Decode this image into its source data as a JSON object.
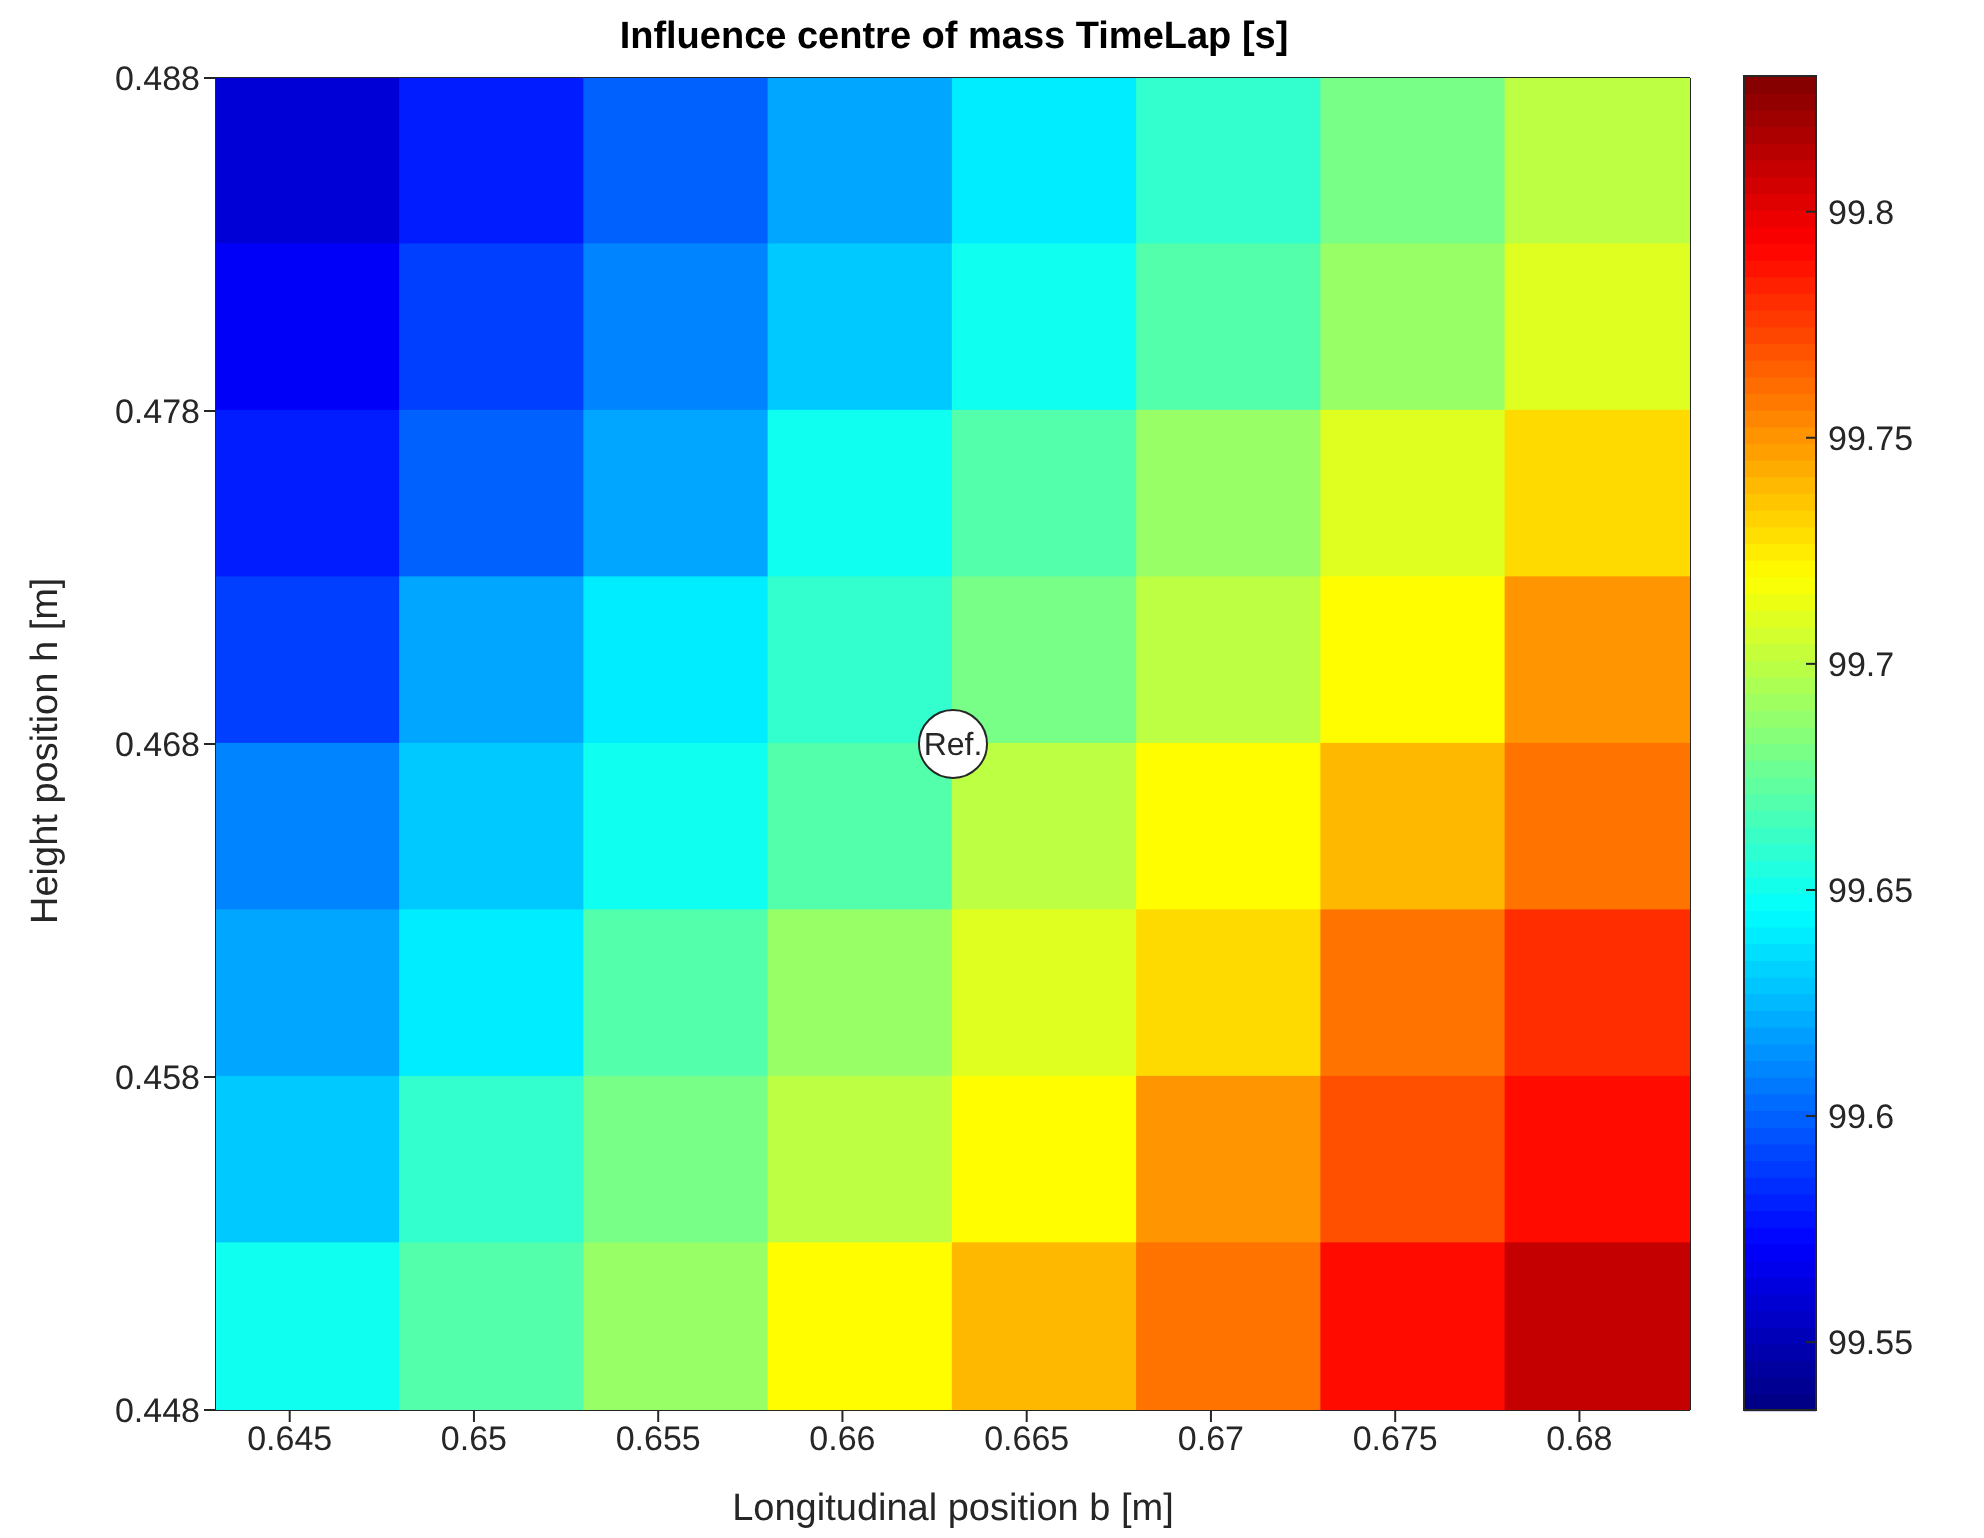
{
  "chart_data": {
    "type": "heatmap",
    "title": "Influence centre of mass TimeLap [s]",
    "xlabel": "Longitudinal position b [m]",
    "ylabel": "Height position h [m]",
    "x": [
      0.6455,
      0.6505,
      0.6555,
      0.6605,
      0.6655,
      0.6705,
      0.6755,
      0.6805
    ],
    "y": [
      0.4855,
      0.4805,
      0.4755,
      0.4705,
      0.4655,
      0.4605,
      0.4555,
      0.4505
    ],
    "cells": [
      [
        99.56,
        99.58,
        99.6,
        99.62,
        99.64,
        99.66,
        99.68,
        99.7
      ],
      [
        99.57,
        99.59,
        99.61,
        99.63,
        99.65,
        99.67,
        99.69,
        99.71
      ],
      [
        99.58,
        99.6,
        99.62,
        99.65,
        99.67,
        99.69,
        99.71,
        99.73
      ],
      [
        99.59,
        99.62,
        99.64,
        99.66,
        99.68,
        99.7,
        99.72,
        99.75
      ],
      [
        99.61,
        99.63,
        99.65,
        99.67,
        99.7,
        99.72,
        99.74,
        99.76
      ],
      [
        99.62,
        99.64,
        99.67,
        99.69,
        99.71,
        99.73,
        99.76,
        99.78
      ],
      [
        99.63,
        99.66,
        99.68,
        99.7,
        99.72,
        99.75,
        99.77,
        99.79
      ],
      [
        99.65,
        99.67,
        99.69,
        99.72,
        99.74,
        99.76,
        99.79,
        99.81
      ]
    ],
    "xlim": [
      0.643,
      0.683
    ],
    "xticks": [
      0.645,
      0.65,
      0.655,
      0.66,
      0.665,
      0.67,
      0.675,
      0.68
    ],
    "ylim": [
      0.448,
      0.488
    ],
    "yticks": [
      0.448,
      0.458,
      0.468,
      0.478,
      0.488
    ],
    "clim": [
      99.535,
      99.83
    ],
    "cticks": [
      99.55,
      99.6,
      99.65,
      99.7,
      99.75,
      99.8
    ],
    "annotations": [
      {
        "text": "Ref.",
        "x": 0.663,
        "y": 0.468
      }
    ]
  }
}
